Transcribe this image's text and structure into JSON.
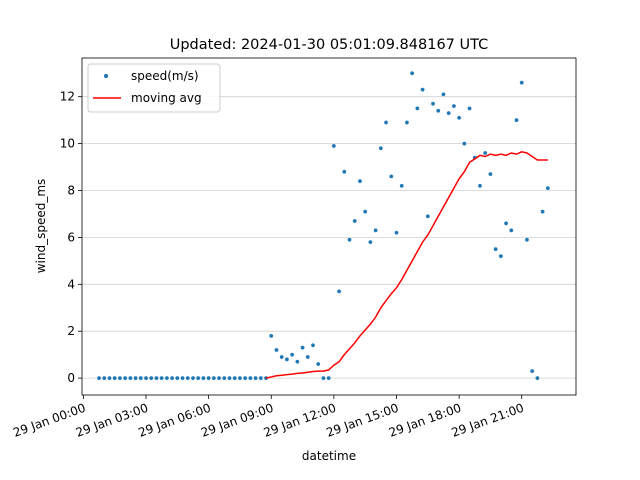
{
  "chart_data": {
    "type": "scatter",
    "title": "Updated: 2024-01-30 05:01:09.848167 UTC",
    "xlabel": "datetime",
    "ylabel": "wind_speed_ms",
    "x": [
      "29 Jan 00:45",
      "29 Jan 01:00",
      "29 Jan 01:15",
      "29 Jan 01:30",
      "29 Jan 01:45",
      "29 Jan 02:00",
      "29 Jan 02:15",
      "29 Jan 02:30",
      "29 Jan 02:45",
      "29 Jan 03:00",
      "29 Jan 03:15",
      "29 Jan 03:30",
      "29 Jan 03:45",
      "29 Jan 04:00",
      "29 Jan 04:15",
      "29 Jan 04:30",
      "29 Jan 04:45",
      "29 Jan 05:00",
      "29 Jan 05:15",
      "29 Jan 05:30",
      "29 Jan 05:45",
      "29 Jan 06:00",
      "29 Jan 06:15",
      "29 Jan 06:30",
      "29 Jan 06:45",
      "29 Jan 07:00",
      "29 Jan 07:15",
      "29 Jan 07:30",
      "29 Jan 07:45",
      "29 Jan 08:00",
      "29 Jan 08:15",
      "29 Jan 08:30",
      "29 Jan 08:45",
      "29 Jan 09:00",
      "29 Jan 09:15",
      "29 Jan 09:30",
      "29 Jan 09:45",
      "29 Jan 10:00",
      "29 Jan 10:15",
      "29 Jan 10:30",
      "29 Jan 10:45",
      "29 Jan 11:00",
      "29 Jan 11:15",
      "29 Jan 11:30",
      "29 Jan 11:45",
      "29 Jan 12:00",
      "29 Jan 12:15",
      "29 Jan 12:30",
      "29 Jan 12:45",
      "29 Jan 13:00",
      "29 Jan 13:15",
      "29 Jan 13:30",
      "29 Jan 13:45",
      "29 Jan 14:00",
      "29 Jan 14:15",
      "29 Jan 14:30",
      "29 Jan 14:45",
      "29 Jan 15:00",
      "29 Jan 15:15",
      "29 Jan 15:30",
      "29 Jan 15:45",
      "29 Jan 16:00",
      "29 Jan 16:15",
      "29 Jan 16:30",
      "29 Jan 16:45",
      "29 Jan 17:00",
      "29 Jan 17:15",
      "29 Jan 17:30",
      "29 Jan 17:45",
      "29 Jan 18:00",
      "29 Jan 18:15",
      "29 Jan 18:30",
      "29 Jan 18:45",
      "29 Jan 19:00",
      "29 Jan 19:15",
      "29 Jan 19:30",
      "29 Jan 19:45",
      "29 Jan 20:00",
      "29 Jan 20:15",
      "29 Jan 20:30",
      "29 Jan 20:45",
      "29 Jan 21:00",
      "29 Jan 21:15",
      "29 Jan 21:30",
      "29 Jan 21:45",
      "29 Jan 22:00",
      "29 Jan 22:15"
    ],
    "series": [
      {
        "name": "speed(m/s)",
        "color": "#1f77b4",
        "kind": "scatter",
        "values": [
          0,
          0,
          0,
          0,
          0,
          0,
          0,
          0,
          0,
          0,
          0,
          0,
          0,
          0,
          0,
          0,
          0,
          0,
          0,
          0,
          0,
          0,
          0,
          0,
          0,
          0,
          0,
          0,
          0,
          0,
          0,
          0,
          0,
          1.8,
          1.2,
          0.9,
          0.8,
          1.0,
          0.7,
          1.3,
          0.9,
          1.4,
          0.6,
          0,
          0,
          9.9,
          3.7,
          8.8,
          5.9,
          6.7,
          8.4,
          7.1,
          5.8,
          6.3,
          9.8,
          10.9,
          8.6,
          6.2,
          8.2,
          10.9,
          13.0,
          11.5,
          12.3,
          6.9,
          11.7,
          11.4,
          12.1,
          11.3,
          11.6,
          11.1,
          10.0,
          11.5,
          9.4,
          8.2,
          9.6,
          8.7,
          5.5,
          5.2,
          6.6,
          6.3,
          11.0,
          12.6,
          5.9,
          0.3,
          0,
          7.1,
          8.1
        ]
      },
      {
        "name": "moving avg",
        "color": "#ff0000",
        "kind": "line",
        "values": [
          null,
          null,
          null,
          null,
          null,
          null,
          null,
          null,
          null,
          null,
          null,
          null,
          null,
          null,
          null,
          null,
          null,
          null,
          null,
          null,
          null,
          null,
          null,
          null,
          null,
          null,
          null,
          null,
          null,
          null,
          null,
          null,
          0.0,
          0.05,
          0.1,
          0.12,
          0.15,
          0.17,
          0.2,
          0.22,
          0.25,
          0.28,
          0.3,
          0.3,
          0.35,
          0.55,
          0.7,
          1.0,
          1.25,
          1.5,
          1.8,
          2.05,
          2.3,
          2.6,
          3.0,
          3.3,
          3.6,
          3.85,
          4.2,
          4.6,
          5.0,
          5.4,
          5.8,
          6.1,
          6.5,
          6.9,
          7.3,
          7.7,
          8.1,
          8.5,
          8.8,
          9.2,
          9.35,
          9.5,
          9.45,
          9.55,
          9.5,
          9.55,
          9.5,
          9.6,
          9.55,
          9.65,
          9.6,
          9.45,
          9.3,
          9.3,
          9.3
        ]
      }
    ],
    "xlim": [
      "28 Jan 23:56",
      "29 Jan 23:36"
    ],
    "xticks": [
      "29 Jan 00:00",
      "29 Jan 03:00",
      "29 Jan 06:00",
      "29 Jan 09:00",
      "29 Jan 12:00",
      "29 Jan 15:00",
      "29 Jan 18:00",
      "29 Jan 21:00"
    ],
    "ylim": [
      -0.72,
      13.65
    ],
    "yticks": [
      0,
      2,
      4,
      6,
      8,
      10,
      12
    ],
    "grid": "y",
    "legend": "upper left"
  }
}
